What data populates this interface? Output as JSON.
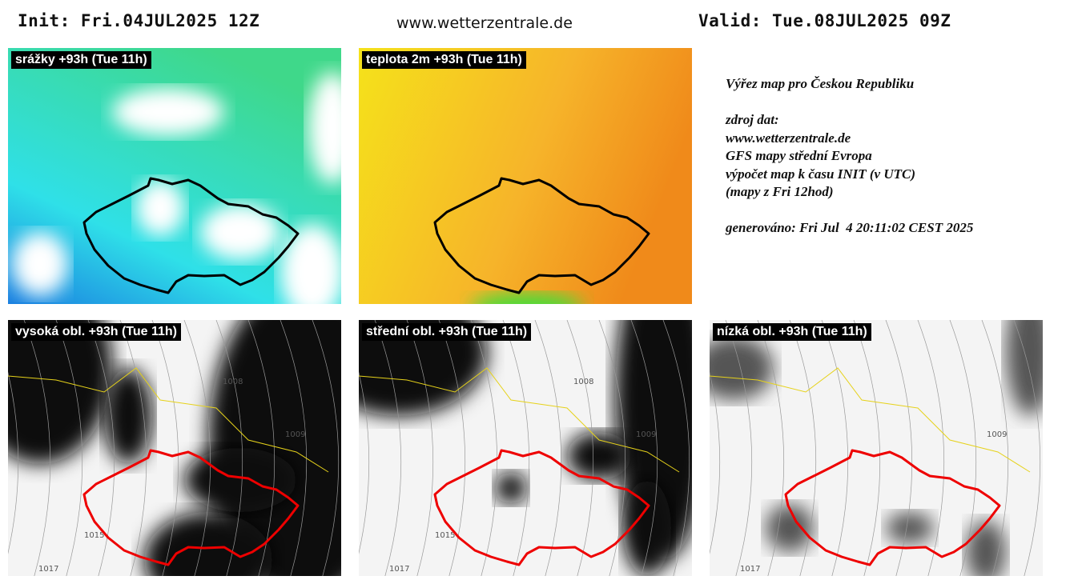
{
  "header": {
    "init": "Init: Fri.04JUL2025 12Z",
    "site": "www.wetterzentrale.de",
    "valid": "Valid: Tue.08JUL2025 09Z"
  },
  "panels": [
    {
      "label": "srážky +93h (Tue 11h)",
      "kind": "precip",
      "contour_labels": []
    },
    {
      "label": "teplota 2m +93h (Tue 11h)",
      "kind": "temp",
      "contour_labels": []
    },
    {
      "label": "vysoká obl. +93h (Tue 11h)",
      "kind": "high",
      "contour_labels": [
        "1008",
        "1009",
        "1015",
        "1017"
      ]
    },
    {
      "label": "střední obl. +93h (Tue 11h)",
      "kind": "mid",
      "contour_labels": [
        "1008",
        "1009",
        "1015",
        "1017"
      ]
    },
    {
      "label": "nízká obl. +93h (Tue 11h)",
      "kind": "low",
      "contour_labels": [
        "1009",
        "1017"
      ]
    }
  ],
  "info": {
    "lines": [
      "Výřez map pro Českou Republiku",
      "",
      "zdroj dat:",
      "www.wetterzentrale.de",
      "GFS mapy střední Evropa",
      "výpočet map k času INIT (v UTC)",
      "(mapy z Fri 12hod)",
      "",
      "generováno: Fri Jul  4 20:11:02 CEST 2025"
    ]
  }
}
